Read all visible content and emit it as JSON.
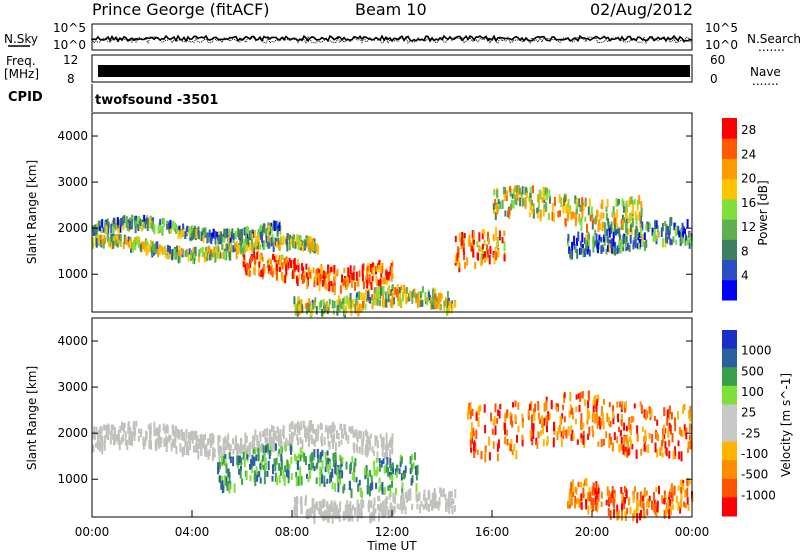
{
  "header": {
    "station": "Prince George (fitACF)",
    "beam": "Beam 10",
    "date": "02/Aug/2012"
  },
  "side_labels": {
    "nsky": "N.Sky",
    "freq_line1": "Freq.",
    "freq_line2": "[MHz]",
    "cpid": "CPID",
    "nsearch": "N.Search",
    "nave": "Nave",
    "dots": "......."
  },
  "cpid_text": "twofsound  -3501",
  "colors": {
    "power": [
      "#0000ff",
      "#2a4fc4",
      "#3f7f5f",
      "#5fb04f",
      "#7fe03a",
      "#ffc400",
      "#ff9a00",
      "#ff5a00",
      "#ff0000"
    ],
    "velocity": [
      "#ff0000",
      "#ff5500",
      "#ff8c00",
      "#ffb400",
      "#c8c8c8",
      "#c8c8c8",
      "#7fe03a",
      "#3a9f4a",
      "#2a5fa0",
      "#1a2fc8"
    ],
    "ground_scatter": "#c0c0bc"
  },
  "chart_data": [
    {
      "type": "line",
      "name": "noise-panel",
      "y_left_ticks": [
        "10^5",
        "10^0"
      ],
      "y_right_ticks": [
        "10^5",
        "10^0"
      ],
      "description_series": [
        "N.Sky",
        "N.Search"
      ],
      "xlim": [
        "00:00",
        "24:00"
      ]
    },
    {
      "type": "line",
      "name": "frequency-panel",
      "y_left_ticks": [
        "12",
        "8"
      ],
      "y_right_ticks": [
        "60",
        "0"
      ],
      "series": [
        {
          "name": "Freq.",
          "values": [
            10.5,
            10.5
          ]
        },
        {
          "name": "Nave",
          "values": [
            30,
            30
          ]
        }
      ]
    },
    {
      "type": "heatmap",
      "name": "power-panel",
      "xlabel": "",
      "ylabel": "Slant Range [km]",
      "ylim": [
        180,
        4500
      ],
      "y_ticks": [
        "1000",
        "2000",
        "3000",
        "4000"
      ],
      "x_ticks": [
        "00:00",
        "04:00",
        "08:00",
        "12:00",
        "16:00",
        "20:00",
        "00:00"
      ],
      "colorbar": {
        "label": "Power [dB]",
        "ticks": [
          "4",
          "8",
          "12",
          "16",
          "20",
          "24",
          "28"
        ],
        "range": [
          0,
          30
        ]
      },
      "features": [
        {
          "t": [
            0.0,
            7.5
          ],
          "range": [
            1950,
            2150
          ],
          "level": 0.35
        },
        {
          "t": [
            0.0,
            9.0
          ],
          "range": [
            1550,
            1750
          ],
          "level": 0.45
        },
        {
          "t": [
            6.0,
            12.0
          ],
          "range": [
            900,
            1350
          ],
          "level": 0.85
        },
        {
          "t": [
            8.0,
            14.5
          ],
          "range": [
            300,
            650
          ],
          "level": 0.5
        },
        {
          "t": [
            14.5,
            16.5
          ],
          "range": [
            1400,
            2100
          ],
          "level": 0.8
        },
        {
          "t": [
            16.0,
            22.0
          ],
          "range": [
            2200,
            2800
          ],
          "level": 0.55
        },
        {
          "t": [
            19.0,
            24.0
          ],
          "range": [
            1600,
            2100
          ],
          "level": 0.3
        }
      ]
    },
    {
      "type": "heatmap",
      "name": "velocity-panel",
      "xlabel": "Time UT",
      "ylabel": "Slant Range [km]",
      "ylim": [
        180,
        4500
      ],
      "y_ticks": [
        "1000",
        "2000",
        "3000",
        "4000"
      ],
      "x_ticks": [
        "00:00",
        "04:00",
        "08:00",
        "12:00",
        "16:00",
        "20:00",
        "00:00"
      ],
      "colorbar": {
        "label": "Velocity [m s^-1]",
        "ticks": [
          "1000",
          "500",
          "100",
          "25",
          "-25",
          "-100",
          "-500",
          "-1000"
        ]
      },
      "features": [
        {
          "t": [
            0.0,
            12.0
          ],
          "range": [
            1700,
            2150
          ],
          "velocity": 0
        },
        {
          "t": [
            5.0,
            13.0
          ],
          "range": [
            900,
            1650
          ],
          "velocity": 150
        },
        {
          "t": [
            8.0,
            14.5
          ],
          "range": [
            300,
            700
          ],
          "velocity": 50
        },
        {
          "t": [
            15.0,
            24.0
          ],
          "range": [
            1700,
            2800
          ],
          "velocity": -300
        },
        {
          "t": [
            19.0,
            24.0
          ],
          "range": [
            400,
            1000
          ],
          "velocity": -200
        }
      ]
    }
  ]
}
